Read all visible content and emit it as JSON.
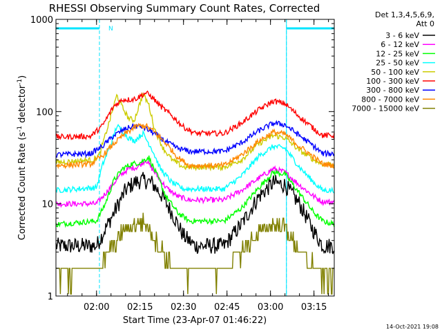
{
  "chart_data": {
    "type": "line",
    "title": "RHESSI Observing Summary Count Rates, Corrected",
    "xlabel": "Start Time (23-Apr-07 01:46:22)",
    "ylabel_main": "Corrected Count Rate (s",
    "ylabel_sup1": "-1",
    "ylabel_mid": " detector",
    "ylabel_sup2": "-1",
    "ylabel_end": ")",
    "y_scale": "log",
    "ylim": [
      1,
      1000
    ],
    "xlim_minutes": [
      0,
      96
    ],
    "x_ticks": [
      {
        "minute": 14,
        "label": "02:00"
      },
      {
        "minute": 29,
        "label": "02:15"
      },
      {
        "minute": 44,
        "label": "02:30"
      },
      {
        "minute": 59,
        "label": "02:45"
      },
      {
        "minute": 74,
        "label": "03:00"
      },
      {
        "minute": 89,
        "label": "03:15"
      }
    ],
    "y_ticks": [
      {
        "value": 1,
        "label": "1"
      },
      {
        "value": 10,
        "label": "10"
      },
      {
        "value": 100,
        "label": "100"
      },
      {
        "value": 1000,
        "label": "1000"
      }
    ],
    "night_marker": "N",
    "time_windows": [
      {
        "start": 0,
        "end": 15
      },
      {
        "start": 79.5,
        "end": 96
      }
    ],
    "detector_note_line1": "Det 1,3,4,5,6,9,",
    "detector_note_line2": "Att 0",
    "series": [
      {
        "name": "3 - 6 keV",
        "color": "#000000",
        "points": [
          [
            0,
            3.5
          ],
          [
            14,
            3.5
          ],
          [
            20,
            8
          ],
          [
            24,
            14
          ],
          [
            27,
            17
          ],
          [
            30,
            18
          ],
          [
            33,
            17
          ],
          [
            36,
            13
          ],
          [
            40,
            8
          ],
          [
            44,
            4.5
          ],
          [
            48,
            3.5
          ],
          [
            58,
            3.5
          ],
          [
            64,
            6
          ],
          [
            70,
            12
          ],
          [
            75,
            17
          ],
          [
            79,
            16
          ],
          [
            84,
            10
          ],
          [
            89,
            5
          ],
          [
            92,
            3.5
          ],
          [
            96,
            3.5
          ]
        ]
      },
      {
        "name": "6 - 12 keV",
        "color": "#ff00ff",
        "points": [
          [
            0,
            10
          ],
          [
            14,
            10
          ],
          [
            18,
            14
          ],
          [
            22,
            20
          ],
          [
            25,
            24
          ],
          [
            28,
            25
          ],
          [
            31,
            30
          ],
          [
            34,
            22
          ],
          [
            38,
            15
          ],
          [
            42,
            12
          ],
          [
            46,
            11
          ],
          [
            58,
            11
          ],
          [
            64,
            14
          ],
          [
            70,
            19
          ],
          [
            75,
            24
          ],
          [
            79,
            22
          ],
          [
            84,
            16
          ],
          [
            89,
            12
          ],
          [
            92,
            10.5
          ],
          [
            96,
            10.5
          ]
        ]
      },
      {
        "name": "12 - 25 keV",
        "color": "#00ff00",
        "points": [
          [
            0,
            6
          ],
          [
            14,
            6.5
          ],
          [
            17,
            10
          ],
          [
            20,
            18
          ],
          [
            23,
            24
          ],
          [
            26,
            27
          ],
          [
            29,
            28
          ],
          [
            32,
            32
          ],
          [
            35,
            20
          ],
          [
            38,
            12
          ],
          [
            42,
            8
          ],
          [
            46,
            6.5
          ],
          [
            58,
            6.5
          ],
          [
            64,
            9
          ],
          [
            70,
            15
          ],
          [
            75,
            22
          ],
          [
            79,
            21
          ],
          [
            84,
            13
          ],
          [
            89,
            8
          ],
          [
            92,
            6.5
          ],
          [
            96,
            6
          ]
        ]
      },
      {
        "name": "25 - 50 keV",
        "color": "#00ffff",
        "points": [
          [
            0,
            14
          ],
          [
            14,
            15
          ],
          [
            16,
            26
          ],
          [
            19,
            45
          ],
          [
            21,
            70
          ],
          [
            23,
            62
          ],
          [
            25,
            52
          ],
          [
            27,
            48
          ],
          [
            30,
            58
          ],
          [
            33,
            40
          ],
          [
            36,
            24
          ],
          [
            40,
            17
          ],
          [
            44,
            14.5
          ],
          [
            58,
            14.5
          ],
          [
            64,
            20
          ],
          [
            70,
            33
          ],
          [
            75,
            42
          ],
          [
            79,
            40
          ],
          [
            84,
            25
          ],
          [
            89,
            17
          ],
          [
            92,
            14
          ],
          [
            96,
            14
          ]
        ]
      },
      {
        "name": "50 - 100 keV",
        "color": "#cccc00",
        "points": [
          [
            0,
            28
          ],
          [
            13,
            30
          ],
          [
            15,
            34
          ],
          [
            17,
            55
          ],
          [
            19,
            90
          ],
          [
            21,
            150
          ],
          [
            23,
            110
          ],
          [
            25,
            85
          ],
          [
            27,
            80
          ],
          [
            30,
            155
          ],
          [
            32,
            120
          ],
          [
            34,
            65
          ],
          [
            37,
            40
          ],
          [
            40,
            30
          ],
          [
            44,
            25
          ],
          [
            58,
            25
          ],
          [
            64,
            30
          ],
          [
            70,
            45
          ],
          [
            75,
            55
          ],
          [
            79,
            52
          ],
          [
            84,
            38
          ],
          [
            89,
            30
          ],
          [
            92,
            27
          ],
          [
            96,
            27
          ]
        ]
      },
      {
        "name": "100 - 300 keV",
        "color": "#ff0000",
        "points": [
          [
            0,
            53
          ],
          [
            12,
            54
          ],
          [
            16,
            70
          ],
          [
            20,
            115
          ],
          [
            23,
            135
          ],
          [
            26,
            135
          ],
          [
            28,
            140
          ],
          [
            31,
            160
          ],
          [
            33,
            145
          ],
          [
            36,
            115
          ],
          [
            40,
            90
          ],
          [
            44,
            68
          ],
          [
            48,
            58
          ],
          [
            58,
            58
          ],
          [
            64,
            75
          ],
          [
            70,
            105
          ],
          [
            75,
            130
          ],
          [
            79,
            122
          ],
          [
            84,
            88
          ],
          [
            89,
            65
          ],
          [
            92,
            55
          ],
          [
            96,
            55
          ]
        ]
      },
      {
        "name": "300 - 800 keV",
        "color": "#0000ff",
        "points": [
          [
            0,
            34
          ],
          [
            12,
            35
          ],
          [
            16,
            42
          ],
          [
            20,
            55
          ],
          [
            24,
            65
          ],
          [
            27,
            70
          ],
          [
            30,
            68
          ],
          [
            34,
            58
          ],
          [
            38,
            47
          ],
          [
            42,
            40
          ],
          [
            46,
            37
          ],
          [
            58,
            37
          ],
          [
            64,
            46
          ],
          [
            70,
            62
          ],
          [
            75,
            75
          ],
          [
            79,
            72
          ],
          [
            84,
            55
          ],
          [
            89,
            42
          ],
          [
            92,
            35
          ],
          [
            96,
            35
          ]
        ]
      },
      {
        "name": "800 - 7000 keV",
        "color": "#ff8800",
        "points": [
          [
            0,
            26
          ],
          [
            12,
            27
          ],
          [
            16,
            33
          ],
          [
            20,
            45
          ],
          [
            24,
            58
          ],
          [
            28,
            70
          ],
          [
            31,
            70
          ],
          [
            34,
            60
          ],
          [
            38,
            45
          ],
          [
            42,
            32
          ],
          [
            46,
            26
          ],
          [
            58,
            26
          ],
          [
            64,
            34
          ],
          [
            70,
            48
          ],
          [
            75,
            60
          ],
          [
            79,
            57
          ],
          [
            84,
            42
          ],
          [
            89,
            32
          ],
          [
            92,
            27
          ],
          [
            96,
            26
          ]
        ]
      },
      {
        "name": "7000 - 15000 keV",
        "color": "#808000",
        "points": [
          [
            0,
            1.8
          ],
          [
            14,
            1.8
          ],
          [
            18,
            3
          ],
          [
            23,
            5
          ],
          [
            27,
            6
          ],
          [
            30,
            6.3
          ],
          [
            33,
            5
          ],
          [
            37,
            3
          ],
          [
            41,
            1.8
          ],
          [
            58,
            1.8
          ],
          [
            63,
            2.8
          ],
          [
            69,
            4.5
          ],
          [
            74,
            6
          ],
          [
            79,
            5.5
          ],
          [
            84,
            3
          ],
          [
            89,
            2
          ],
          [
            92,
            1.6
          ],
          [
            96,
            1.6
          ]
        ]
      }
    ]
  },
  "footer_timestamp": "14-Oct-2021 19:08"
}
